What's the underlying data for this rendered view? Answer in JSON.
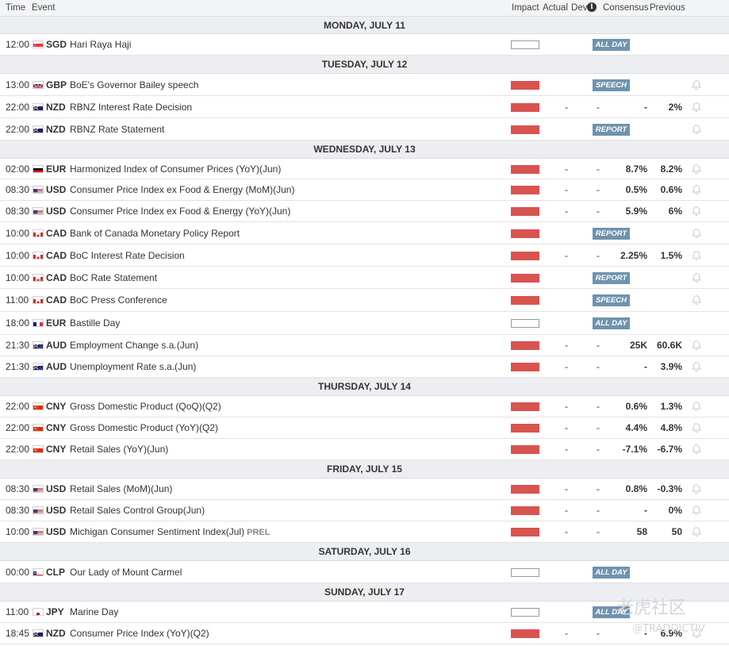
{
  "columns": {
    "time": "Time",
    "event": "Event",
    "impact": "Impact",
    "actual": "Actual",
    "dev": "Dev",
    "consensus": "Consensus",
    "previous": "Previous"
  },
  "watermark": {
    "main": "老虎社区",
    "sub": "@TRADDICTIV"
  },
  "days": [
    {
      "label": "MONDAY, JULY 11",
      "events": [
        {
          "time": "12:00",
          "flag": "sg",
          "currency": "SGD",
          "name": "Hari Raya Haji",
          "impact": "none",
          "badge": "ALL DAY"
        }
      ]
    },
    {
      "label": "TUESDAY, JULY 12",
      "events": [
        {
          "time": "13:00",
          "flag": "gb",
          "currency": "GBP",
          "name": "BoE's Governor Bailey speech",
          "impact": "high",
          "badge": "SPEECH",
          "bell": true
        },
        {
          "time": "22:00",
          "flag": "nz",
          "currency": "NZD",
          "name": "RBNZ Interest Rate Decision",
          "impact": "high",
          "actual": "-",
          "dev": "-",
          "consensus": "-",
          "previous": "2%",
          "bell": true
        },
        {
          "time": "22:00",
          "flag": "nz",
          "currency": "NZD",
          "name": "RBNZ Rate Statement",
          "impact": "high",
          "badge": "REPORT",
          "bell": true
        }
      ]
    },
    {
      "label": "WEDNESDAY, JULY 13",
      "events": [
        {
          "time": "02:00",
          "flag": "de",
          "currency": "EUR",
          "name": "Harmonized Index of Consumer Prices (YoY)(Jun)",
          "impact": "high",
          "actual": "-",
          "dev": "-",
          "consensus": "8.7%",
          "previous": "8.2%",
          "bell": true
        },
        {
          "time": "08:30",
          "flag": "us",
          "currency": "USD",
          "name": "Consumer Price Index ex Food & Energy (MoM)(Jun)",
          "impact": "high",
          "actual": "-",
          "dev": "-",
          "consensus": "0.5%",
          "previous": "0.6%",
          "bell": true
        },
        {
          "time": "08:30",
          "flag": "us",
          "currency": "USD",
          "name": "Consumer Price Index ex Food & Energy (YoY)(Jun)",
          "impact": "high",
          "actual": "-",
          "dev": "-",
          "consensus": "5.9%",
          "previous": "6%",
          "bell": true
        },
        {
          "time": "10:00",
          "flag": "ca",
          "currency": "CAD",
          "name": "Bank of Canada Monetary Policy Report",
          "impact": "high",
          "badge": "REPORT",
          "bell": true
        },
        {
          "time": "10:00",
          "flag": "ca",
          "currency": "CAD",
          "name": "BoC Interest Rate Decision",
          "impact": "high",
          "actual": "-",
          "dev": "-",
          "consensus": "2.25%",
          "previous": "1.5%",
          "bell": true
        },
        {
          "time": "10:00",
          "flag": "ca",
          "currency": "CAD",
          "name": "BoC Rate Statement",
          "impact": "high",
          "badge": "REPORT",
          "bell": true
        },
        {
          "time": "11:00",
          "flag": "ca",
          "currency": "CAD",
          "name": "BoC Press Conference",
          "impact": "high",
          "badge": "SPEECH",
          "bell": true
        },
        {
          "time": "18:00",
          "flag": "fr",
          "currency": "EUR",
          "name": "Bastille Day",
          "impact": "none",
          "badge": "ALL DAY"
        },
        {
          "time": "21:30",
          "flag": "au",
          "currency": "AUD",
          "name": "Employment Change s.a.(Jun)",
          "impact": "high",
          "actual": "-",
          "dev": "-",
          "consensus": "25K",
          "previous": "60.6K",
          "bell": true
        },
        {
          "time": "21:30",
          "flag": "au",
          "currency": "AUD",
          "name": "Unemployment Rate s.a.(Jun)",
          "impact": "high",
          "actual": "-",
          "dev": "-",
          "consensus": "-",
          "previous": "3.9%",
          "bell": true
        }
      ]
    },
    {
      "label": "THURSDAY, JULY 14",
      "events": [
        {
          "time": "22:00",
          "flag": "cn",
          "currency": "CNY",
          "name": "Gross Domestic Product (QoQ)(Q2)",
          "impact": "high",
          "actual": "-",
          "dev": "-",
          "consensus": "0.6%",
          "previous": "1.3%",
          "bell": true
        },
        {
          "time": "22:00",
          "flag": "cn",
          "currency": "CNY",
          "name": "Gross Domestic Product (YoY)(Q2)",
          "impact": "high",
          "actual": "-",
          "dev": "-",
          "consensus": "4.4%",
          "previous": "4.8%",
          "bell": true
        },
        {
          "time": "22:00",
          "flag": "cn",
          "currency": "CNY",
          "name": "Retail Sales (YoY)(Jun)",
          "impact": "high",
          "actual": "-",
          "dev": "-",
          "consensus": "-7.1%",
          "previous": "-6.7%",
          "bell": true
        }
      ]
    },
    {
      "label": "FRIDAY, JULY 15",
      "events": [
        {
          "time": "08:30",
          "flag": "us",
          "currency": "USD",
          "name": "Retail Sales (MoM)(Jun)",
          "impact": "high",
          "actual": "-",
          "dev": "-",
          "consensus": "0.8%",
          "previous": "-0.3%",
          "bell": true
        },
        {
          "time": "08:30",
          "flag": "us",
          "currency": "USD",
          "name": "Retail Sales Control Group(Jun)",
          "impact": "high",
          "actual": "-",
          "dev": "-",
          "consensus": "-",
          "previous": "0%",
          "bell": true
        },
        {
          "time": "10:00",
          "flag": "us",
          "currency": "USD",
          "name": "Michigan Consumer Sentiment Index(Jul)",
          "tag": "PREL",
          "impact": "high",
          "actual": "-",
          "dev": "-",
          "consensus": "58",
          "previous": "50",
          "bell": true
        }
      ]
    },
    {
      "label": "SATURDAY, JULY 16",
      "events": [
        {
          "time": "00:00",
          "flag": "cl",
          "currency": "CLP",
          "name": "Our Lady of Mount Carmel",
          "impact": "none",
          "badge": "ALL DAY"
        }
      ]
    },
    {
      "label": "SUNDAY, JULY 17",
      "events": [
        {
          "time": "11:00",
          "flag": "jp",
          "currency": "JPY",
          "name": "Marine Day",
          "impact": "none",
          "badge": "ALL DAY"
        },
        {
          "time": "18:45",
          "flag": "nz",
          "currency": "NZD",
          "name": "Consumer Price Index (YoY)(Q2)",
          "impact": "high",
          "actual": "-",
          "dev": "-",
          "consensus": "-",
          "previous": "6.9%",
          "bell": true
        }
      ]
    }
  ]
}
